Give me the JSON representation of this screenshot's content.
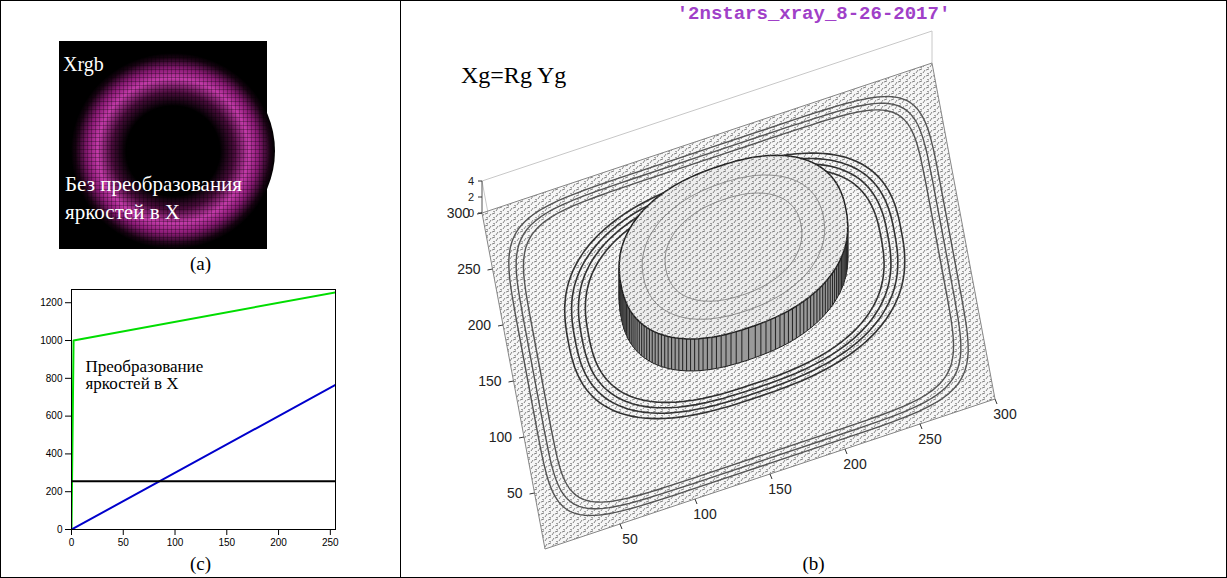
{
  "image_panel": {
    "label": "(a)",
    "title": "Xrgb",
    "caption": "Без преобразования яркостей в X"
  },
  "chart_data": [
    {
      "type": "surface",
      "label": "(b)",
      "title": "'2nstars_xray_8-26-2017'",
      "annotation": "Xg=Rg Yg",
      "xlim": [
        0,
        300
      ],
      "xticks": [
        50,
        100,
        150,
        200,
        250,
        300
      ],
      "ylim": [
        0,
        300
      ],
      "yticks": [
        50,
        100,
        150,
        200,
        250,
        300
      ],
      "zlim": [
        0,
        4
      ],
      "zticks": [
        0,
        2,
        4
      ]
    },
    {
      "type": "line",
      "label": "(c)",
      "annotation": "Преобразование яркостей в X",
      "x": [
        0,
        2,
        255
      ],
      "series": [
        {
          "color": "#00dd00",
          "values": [
            0,
            1000,
            1255
          ]
        },
        {
          "color": "#0000cc",
          "values": [
            0,
            6,
            765
          ]
        },
        {
          "color": "#000000",
          "values": [
            255,
            255,
            255
          ]
        }
      ],
      "xlim": [
        0,
        255
      ],
      "xticks": [
        0,
        50,
        100,
        150,
        200,
        250
      ],
      "ylim": [
        0,
        1270
      ],
      "yticks": [
        0,
        200,
        400,
        600,
        800,
        1000,
        1200
      ]
    }
  ]
}
